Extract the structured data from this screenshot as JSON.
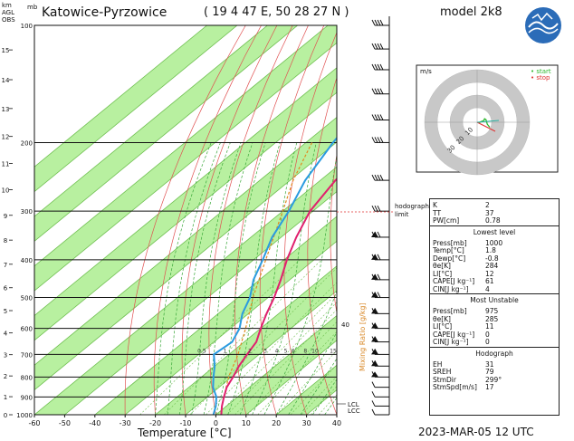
{
  "header": {
    "station": "Katowice-Pyrzowice",
    "coords": "( 19 4 47 E, 50 28 27 N )",
    "model": "model 2k8",
    "date": "2023-MAR-05   12 UTC"
  },
  "axes": {
    "xlabel": "Temperature [°C]",
    "unit_km": "km",
    "unit_mb": "mb",
    "unit_agl": "AGL",
    "unit_obs": "OBS",
    "mixing_label": "Mixing Ratio [g/kg]",
    "hodograph_limit": "hodograph limit",
    "lcl": "LCL",
    "lfc": "LCC"
  },
  "hodograph": {
    "unit": "m/s",
    "start_label": "start",
    "stop_label": "stop",
    "rings": [
      "10",
      "20",
      "30"
    ],
    "start_color": "#2db82d",
    "stop_color": "#e03030",
    "points": [
      [
        1.5,
        -0.5
      ],
      [
        3,
        0.5
      ],
      [
        5,
        1.2
      ],
      [
        6,
        2.5
      ],
      [
        5.5,
        3
      ],
      [
        7,
        2
      ],
      [
        8,
        -1.5
      ],
      [
        10,
        -4
      ]
    ]
  },
  "info": {
    "top": [
      {
        "k": "K",
        "v": "2"
      },
      {
        "k": "TT",
        "v": "37"
      },
      {
        "k": "PW[cm]",
        "v": "0.78"
      }
    ],
    "lowest_title": "Lowest level",
    "lowest": [
      {
        "k": "Press[mb]",
        "v": "1000"
      },
      {
        "k": "Temp[°C]",
        "v": "1.8"
      },
      {
        "k": "Dewp[°C]",
        "v": "-0.8"
      },
      {
        "k": "θe[K]",
        "v": "284"
      },
      {
        "k": "LI[°C]",
        "v": "12"
      },
      {
        "k": "CAPE[J kg⁻¹]",
        "v": "61"
      },
      {
        "k": "CIN[J kg⁻¹]",
        "v": "4"
      }
    ],
    "unstable_title": "Most Unstable",
    "unstable": [
      {
        "k": "Press[mb]",
        "v": "975"
      },
      {
        "k": "θe[K]",
        "v": "285"
      },
      {
        "k": "LI[°C]",
        "v": "11"
      },
      {
        "k": "CAPE[J kg⁻¹]",
        "v": "0"
      },
      {
        "k": "CIN[J kg⁻¹]",
        "v": "0"
      }
    ],
    "hodo_title": "Hodograph",
    "hodo": [
      {
        "k": "EH",
        "v": "31"
      },
      {
        "k": "SREH",
        "v": "79"
      },
      {
        "k": "StmDir",
        "v": "299°"
      },
      {
        "k": "StmSpd[m/s]",
        "v": "17"
      }
    ]
  },
  "chart_data": {
    "type": "line",
    "title": "Katowice-Pyrzowice",
    "xlabel": "Temperature [°C]",
    "ylabel": "mb",
    "xlim": [
      -60,
      40
    ],
    "ylim": [
      1000,
      100
    ],
    "y_log": true,
    "x_ticks": [
      -60,
      -50,
      -40,
      -30,
      -20,
      -10,
      0,
      10,
      20,
      30,
      40
    ],
    "p_ticks": [
      1000,
      900,
      800,
      700,
      600,
      500,
      400,
      300,
      200,
      100
    ],
    "km_ticks": [
      0,
      1,
      2,
      3,
      4,
      5,
      6,
      7,
      8,
      9,
      10,
      11,
      12,
      13,
      14,
      15
    ],
    "mixing_ratio_labels": [
      "0.5",
      "1",
      "2",
      "3",
      "4",
      "5",
      "6",
      "8",
      "10",
      "15",
      "20",
      "25",
      "30",
      "35"
    ],
    "temperature": {
      "p": [
        1000,
        950,
        900,
        850,
        800,
        750,
        700,
        650,
        600,
        550,
        500,
        450,
        400,
        350,
        300,
        250,
        200,
        175,
        150,
        130,
        115,
        100
      ],
      "t": [
        1.8,
        -1.5,
        -4.5,
        -7.5,
        -9.5,
        -12,
        -14,
        -16,
        -20,
        -24,
        -28,
        -33,
        -39,
        -45,
        -51,
        -55,
        -57,
        -54,
        -50,
        -48,
        -44,
        -45
      ]
    },
    "dewpoint": {
      "p": [
        1000,
        950,
        900,
        850,
        800,
        750,
        700,
        650,
        600,
        550,
        500,
        450,
        400,
        350,
        300,
        250,
        200,
        175,
        150,
        130,
        115,
        100
      ],
      "t": [
        -0.8,
        -3.5,
        -7,
        -12,
        -16,
        -20,
        -25,
        -24,
        -27,
        -32,
        -36,
        -42,
        -47,
        -53,
        -58,
        -65,
        -71,
        -74,
        -76,
        -77,
        -78,
        -80
      ]
    },
    "parcel": {
      "p": [
        1000,
        950,
        900,
        800,
        700,
        600,
        500,
        400,
        300,
        250,
        200
      ],
      "t": [
        1.8,
        -1.5,
        -4.5,
        -11,
        -17,
        -25,
        -35,
        -46,
        -60,
        -69,
        -78
      ]
    },
    "wind_levels": [
      1000,
      950,
      900,
      850,
      800,
      750,
      700,
      650,
      600,
      550,
      500,
      450,
      400,
      350,
      300,
      250,
      200,
      175,
      150,
      130,
      115,
      100
    ]
  }
}
